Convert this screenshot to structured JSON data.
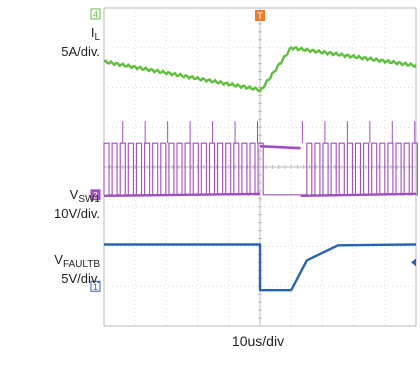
{
  "chart_data": {
    "type": "line",
    "time_div": "10us/div",
    "grid": true,
    "divisions": {
      "x": 10,
      "y": 8
    },
    "trigger_marker": "T",
    "channels": [
      {
        "id": "IL",
        "name": "I",
        "sub": "L",
        "scale": "5A/div.",
        "marker": "4",
        "color": "#5dbf3c",
        "x": [
          0,
          4.95,
          5.0,
          6.0,
          10.0
        ],
        "y": [
          6.65,
          5.95,
          5.9,
          7.0,
          6.55
        ]
      },
      {
        "id": "VSW1",
        "name": "V",
        "sub": "SW1",
        "scale": "10V/div.",
        "marker": "3",
        "color": "#a04ec0",
        "switching_high_div": 4.6,
        "switching_low_div": 3.3,
        "blanked_interval_div": [
          5.0,
          6.3
        ]
      },
      {
        "id": "VFAULTB",
        "name": "V",
        "sub": "FAULTB",
        "scale": "5V/div.",
        "marker": "1",
        "color": "#2a64b0",
        "x": [
          0,
          5.0,
          5.0,
          5.85,
          6.0,
          6.5,
          7.5,
          10.0
        ],
        "y": [
          2.05,
          2.05,
          0.9,
          0.9,
          0.9,
          1.65,
          2.03,
          2.05
        ]
      }
    ]
  }
}
